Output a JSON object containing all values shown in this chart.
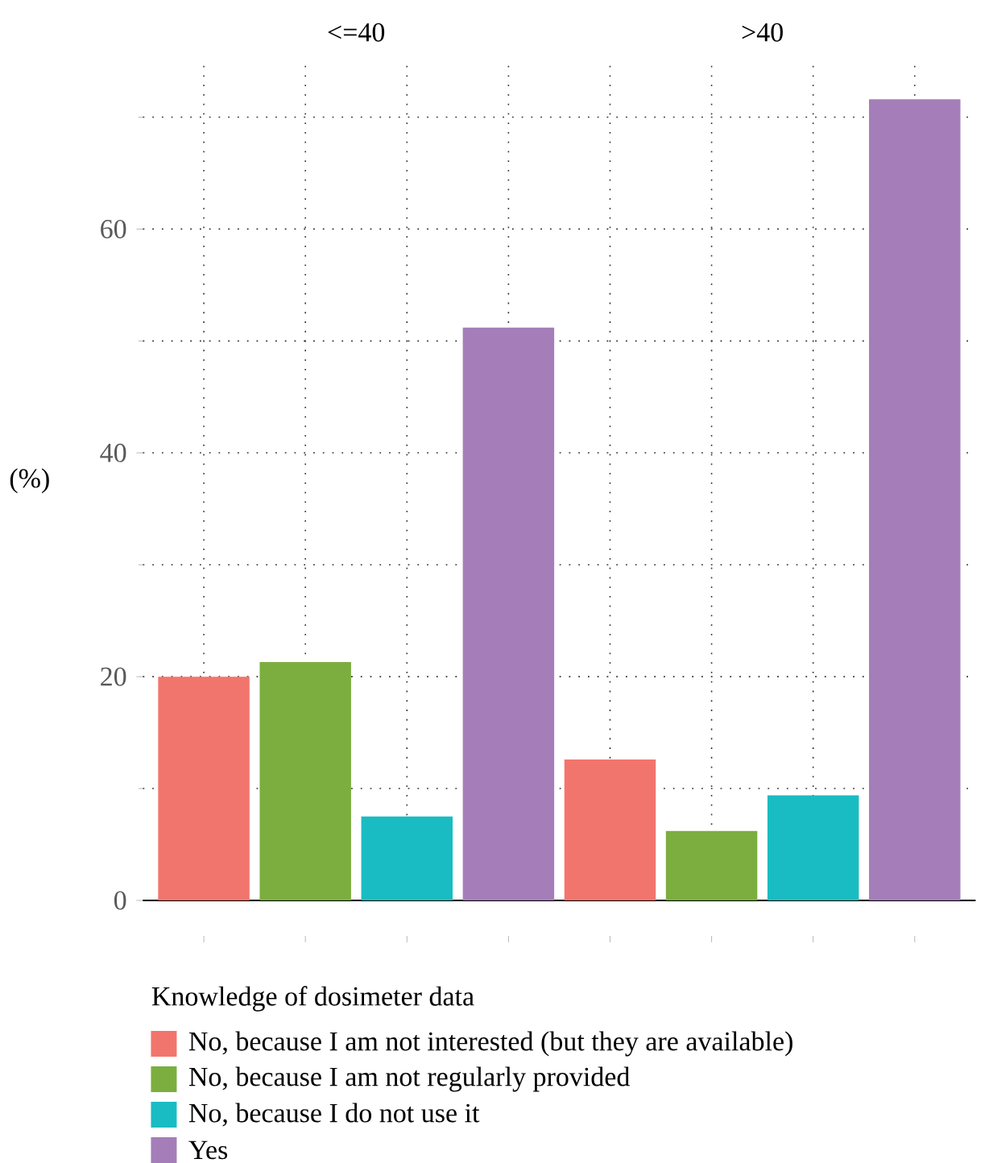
{
  "chart_data": {
    "type": "bar",
    "ylabel": "(%)",
    "legend_title": "Knowledge of dosimeter data",
    "legend": "bottom",
    "grid": true,
    "tick_labels": "y",
    "annotations": [
      "<=40",
      ">40"
    ],
    "categories": [
      null,
      null,
      null,
      null,
      null,
      null,
      null,
      null
    ],
    "ylim": [
      0,
      75
    ],
    "yticks": [
      0,
      20,
      40,
      60
    ],
    "series": [
      {
        "name": "No, because I am not interested (but they are available)",
        "color": "#f2756d",
        "values": [
          20,
          null,
          null,
          null,
          12.6,
          null,
          null,
          null
        ]
      },
      {
        "name": "No, because I am not regularly provided",
        "color": "#7cae3f",
        "values": [
          null,
          21.3,
          null,
          null,
          null,
          6.2,
          null,
          null
        ]
      },
      {
        "name": "No, because I do not use it",
        "color": "#19bcc2",
        "values": [
          null,
          null,
          7.5,
          null,
          null,
          null,
          9.4,
          null
        ]
      },
      {
        "name": "Yes",
        "color": "#a57eb9",
        "values": [
          null,
          null,
          null,
          51.2,
          null,
          null,
          null,
          71.6
        ]
      }
    ]
  }
}
